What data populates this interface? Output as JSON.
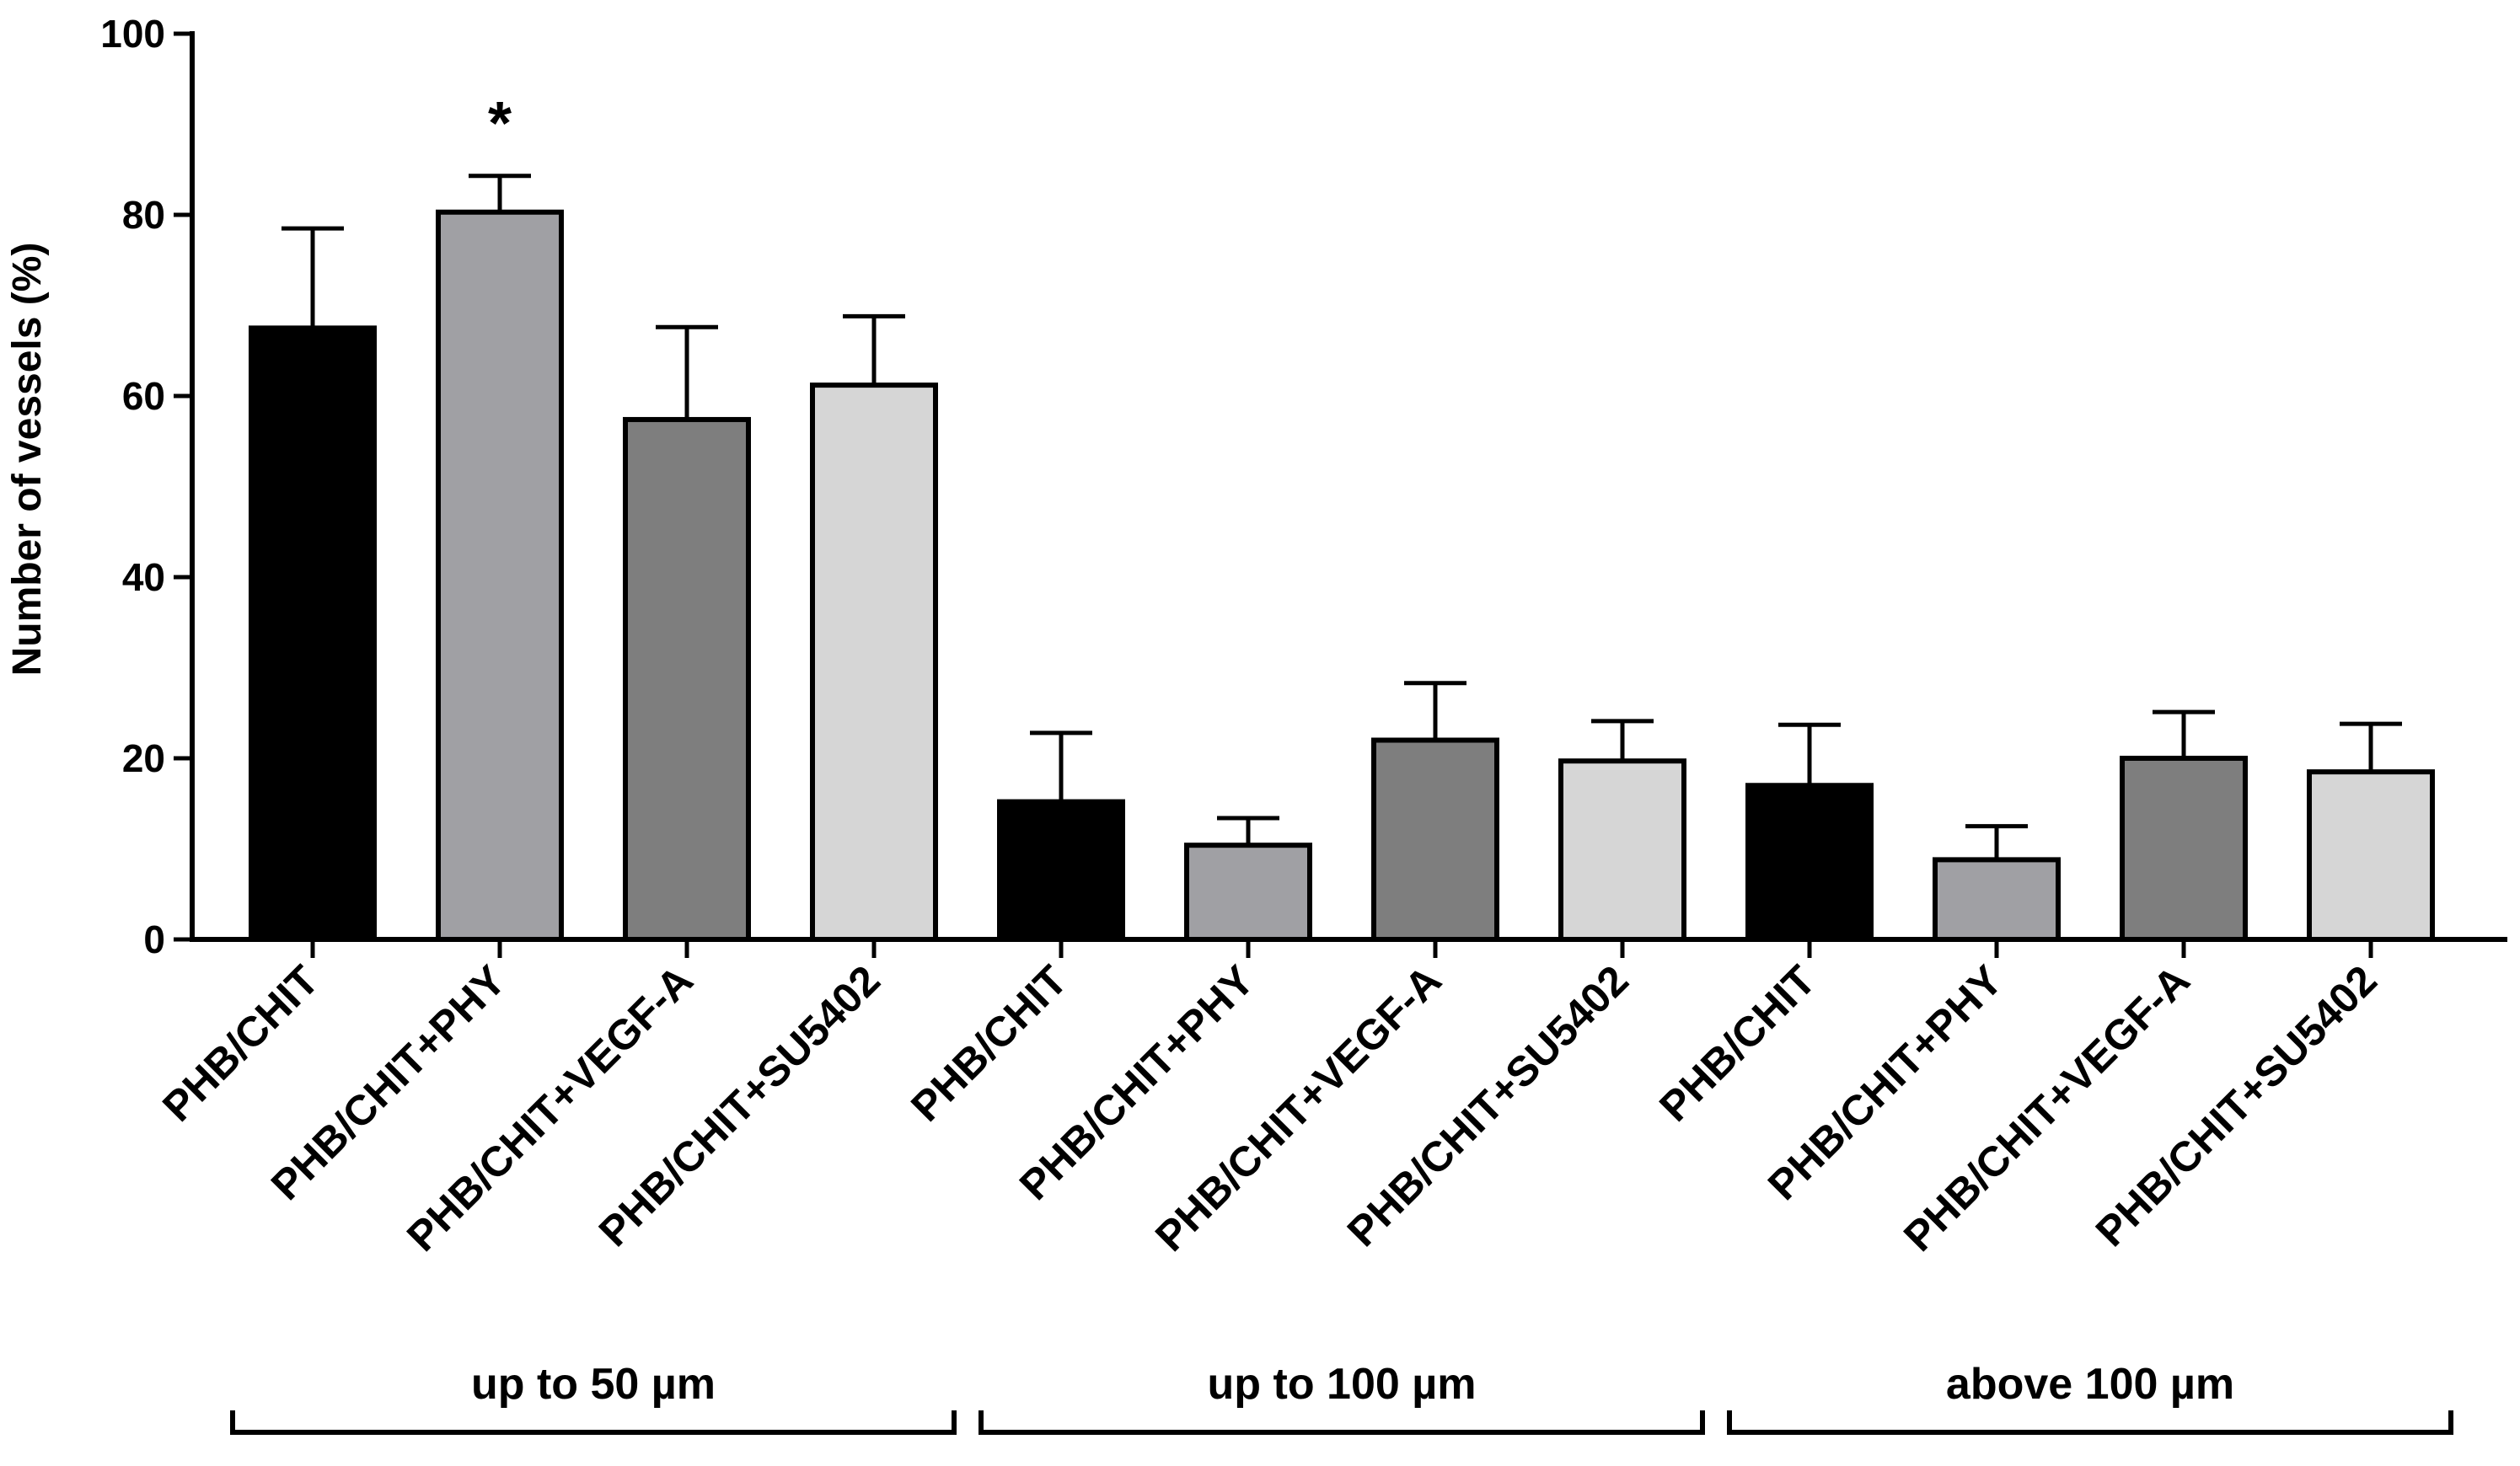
{
  "chart_data": {
    "type": "bar",
    "ylabel": "Number of vessels (%)",
    "ylim": [
      0,
      100
    ],
    "yticks": [
      0,
      20,
      40,
      60,
      80,
      100
    ],
    "grid": false,
    "categories": [
      "PHB/CHIT",
      "PHB/CHIT+PHY",
      "PHB/CHIT+VEGF-A",
      "PHB/CHIT+SU5402",
      "PHB/CHIT",
      "PHB/CHIT+PHY",
      "PHB/CHIT+VEGF-A",
      "PHB/CHIT+SU5402",
      "PHB/CHIT",
      "PHB/CHIT+PHY",
      "PHB/CHIT+VEGF-A",
      "PHB/CHIT+SU5402"
    ],
    "values": [
      67.5,
      80.3,
      57.4,
      61.2,
      15.2,
      10.4,
      22.0,
      19.7,
      17.0,
      8.8,
      20.0,
      18.5
    ],
    "errors": [
      11.0,
      4.0,
      10.2,
      7.6,
      7.6,
      3.0,
      6.3,
      4.4,
      6.7,
      3.7,
      5.1,
      5.3
    ],
    "bar_colors": [
      "#000000",
      "#a0a0a4",
      "#7e7e7e",
      "#d6d6d6"
    ],
    "groups": [
      {
        "label": "up to 50 µm",
        "members": [
          0,
          1,
          2,
          3
        ]
      },
      {
        "label": "up to 100 µm",
        "members": [
          4,
          5,
          6,
          7
        ]
      },
      {
        "label": "above 100 µm",
        "members": [
          8,
          9,
          10,
          11
        ]
      }
    ],
    "annotations": [
      {
        "text": "*",
        "bar_index": 1
      }
    ]
  }
}
